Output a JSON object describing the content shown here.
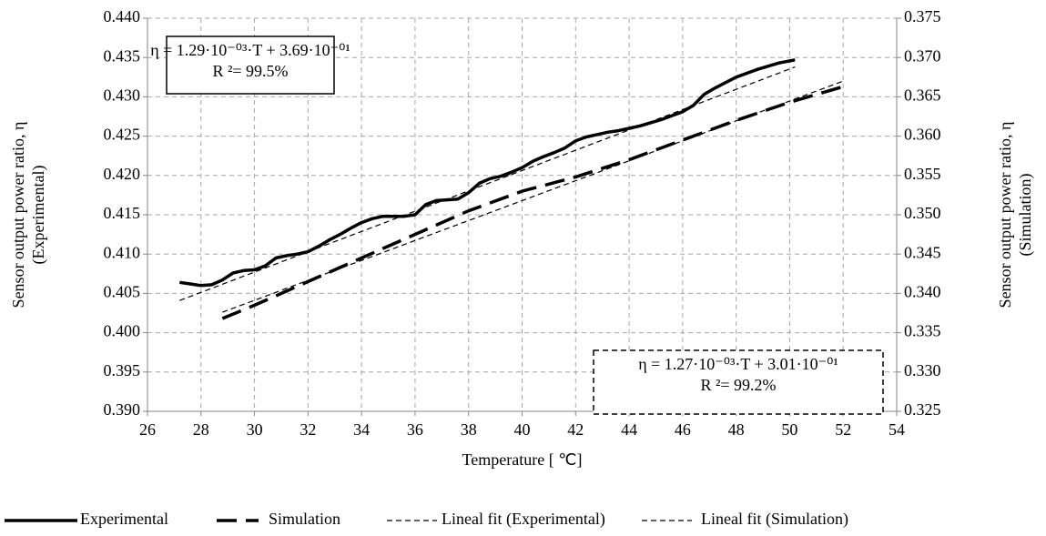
{
  "chart_data": {
    "type": "line",
    "xlabel": "Temperature [ ℃]",
    "ylabel": [
      "Sensor output power ratio, η",
      "(Experimental)"
    ],
    "y2label": [
      "Sensor output power ratio, η",
      "(Simulation)"
    ],
    "xlim": [
      26,
      54
    ],
    "xticks": [
      26,
      28,
      30,
      32,
      34,
      36,
      38,
      40,
      42,
      44,
      46,
      48,
      50,
      52,
      54
    ],
    "ylim": [
      0.39,
      0.44
    ],
    "yticks": [
      {
        "value": 0.39,
        "label": "0.390"
      },
      0.395,
      {
        "value": 0.4,
        "label": "0.400"
      },
      0.405,
      {
        "value": 0.41,
        "label": "0.410"
      },
      0.415,
      {
        "value": 0.42,
        "label": "0.420"
      },
      0.425,
      {
        "value": 0.43,
        "label": "0.430"
      },
      0.435,
      {
        "value": 0.44,
        "label": "0.440"
      }
    ],
    "y2lim": [
      0.325,
      0.375
    ],
    "y2ticks": [
      0.325,
      {
        "value": 0.33,
        "label": "0.330"
      },
      0.335,
      {
        "value": 0.34,
        "label": "0.340"
      },
      0.345,
      {
        "value": 0.35,
        "label": "0.350"
      },
      0.355,
      {
        "value": 0.36,
        "label": "0.360"
      },
      0.365,
      {
        "value": 0.37,
        "label": "0.370"
      },
      0.375
    ],
    "grid": true,
    "legend": "bottom",
    "series": [
      {
        "name": "Experimental",
        "color": "#000000",
        "line_style": "solid",
        "line_width": 3.5,
        "x": [
          27.2,
          27.6,
          28,
          28.4,
          28.8,
          29.2,
          29.6,
          30,
          30.4,
          30.8,
          31.2,
          31.6,
          32,
          32.4,
          32.8,
          33.2,
          33.6,
          34,
          34.4,
          34.8,
          35.2,
          35.6,
          36,
          36.4,
          36.8,
          37.2,
          37.6,
          38,
          38.4,
          38.8,
          39.2,
          39.6,
          40,
          40.4,
          40.8,
          41.2,
          41.6,
          42,
          42.4,
          42.8,
          43.2,
          43.6,
          44,
          44.4,
          44.8,
          45.2,
          45.6,
          46,
          46.4,
          46.8,
          47.2,
          47.6,
          48,
          48.4,
          48.8,
          49.2,
          49.6,
          50.2
        ],
        "values": [
          0.4064,
          0.4062,
          0.406,
          0.4061,
          0.4067,
          0.4076,
          0.4079,
          0.408,
          0.4085,
          0.4095,
          0.4098,
          0.41,
          0.4103,
          0.411,
          0.4118,
          0.4125,
          0.4133,
          0.414,
          0.4145,
          0.4148,
          0.4148,
          0.4148,
          0.415,
          0.4163,
          0.4168,
          0.4169,
          0.417,
          0.4178,
          0.419,
          0.4196,
          0.4199,
          0.4204,
          0.421,
          0.4218,
          0.4224,
          0.4229,
          0.4235,
          0.4244,
          0.4249,
          0.4252,
          0.4255,
          0.4257,
          0.426,
          0.4263,
          0.4267,
          0.4271,
          0.4276,
          0.4281,
          0.4289,
          0.4303,
          0.4311,
          0.4318,
          0.4325,
          0.433,
          0.4335,
          0.4339,
          0.4343,
          0.4347
        ]
      },
      {
        "name": "Simulation",
        "color": "#000000",
        "line_style": "dashed",
        "line_width": 3.5,
        "axis": "y2",
        "x": [
          28.8,
          30,
          32,
          34,
          36,
          38,
          40,
          42,
          44,
          46,
          48,
          50,
          52
        ],
        "values": [
          0.3368,
          0.3385,
          0.3415,
          0.3445,
          0.3475,
          0.3505,
          0.353,
          0.3548,
          0.357,
          0.3595,
          0.362,
          0.3643,
          0.3663
        ]
      },
      {
        "name": "Lineal fit (Experimental)",
        "color": "#000000",
        "line_style": "dotted",
        "line_width": 1.2,
        "x": [
          27.2,
          50.2
        ],
        "values": [
          0.4041,
          0.4338
        ]
      },
      {
        "name": "Lineal fit (Simulation)",
        "color": "#000000",
        "line_style": "dotted",
        "line_width": 1.2,
        "axis": "y2",
        "x": [
          28.8,
          52
        ],
        "values": [
          0.3376,
          0.367
        ]
      }
    ],
    "annotations": [
      {
        "lines": [
          "η = 1.29·10⁻⁰³·T + 3.69·10⁻⁰¹",
          "R ²= 99.5%"
        ],
        "border": "solid"
      },
      {
        "lines": [
          "η = 1.27·10⁻⁰³·T + 3.01·10⁻⁰¹",
          "R ²= 99.2%"
        ],
        "border": "dashed"
      }
    ]
  }
}
